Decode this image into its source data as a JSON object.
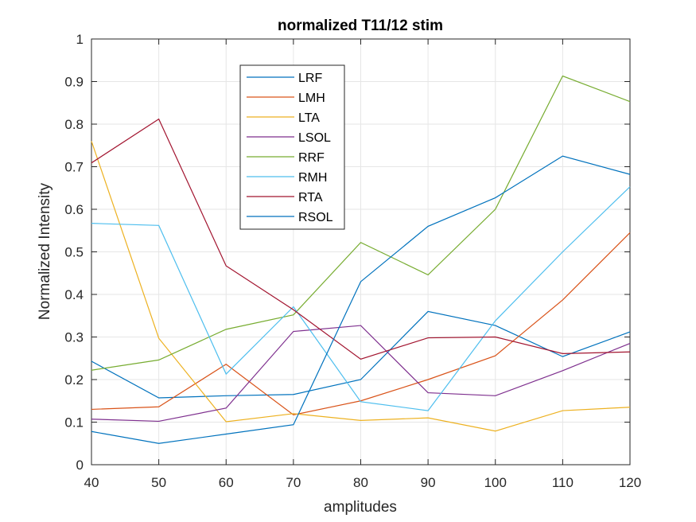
{
  "chart_data": {
    "type": "line",
    "title": "normalized T11/12 stim",
    "xlabel": "amplitudes",
    "ylabel": "Normalized Intensity",
    "xlim": [
      40,
      120
    ],
    "ylim": [
      0,
      1
    ],
    "xticks": [
      "40",
      "50",
      "60",
      "70",
      "80",
      "90",
      "100",
      "110",
      "120"
    ],
    "yticks": [
      "0",
      "0.1",
      "0.2",
      "0.3",
      "0.4",
      "0.5",
      "0.6",
      "0.7",
      "0.8",
      "0.9",
      "1"
    ],
    "grid": true,
    "legend_position": "top-center-left",
    "x": [
      40,
      50,
      60,
      70,
      80,
      90,
      100,
      110,
      120
    ],
    "series": [
      {
        "name": "LRF",
        "color": "#0072BD",
        "values": [
          0.243,
          0.157,
          0.162,
          0.165,
          0.2,
          0.36,
          0.327,
          0.254,
          0.312
        ]
      },
      {
        "name": "LMH",
        "color": "#D95319",
        "values": [
          0.13,
          0.136,
          0.236,
          0.117,
          0.15,
          0.2,
          0.256,
          0.387,
          0.545
        ]
      },
      {
        "name": "LTA",
        "color": "#EDB120",
        "values": [
          0.76,
          0.297,
          0.101,
          0.12,
          0.104,
          0.11,
          0.079,
          0.127,
          0.135
        ]
      },
      {
        "name": "LSOL",
        "color": "#7E2F8E",
        "values": [
          0.107,
          0.102,
          0.133,
          0.313,
          0.327,
          0.169,
          0.162,
          0.221,
          0.285
        ]
      },
      {
        "name": "RRF",
        "color": "#77AC30",
        "values": [
          0.222,
          0.246,
          0.318,
          0.352,
          0.522,
          0.446,
          0.6,
          0.913,
          0.853
        ]
      },
      {
        "name": "RMH",
        "color": "#4DBEEE",
        "values": [
          0.567,
          0.562,
          0.213,
          0.371,
          0.148,
          0.127,
          0.338,
          0.5,
          0.653
        ]
      },
      {
        "name": "RTA",
        "color": "#A2142F",
        "values": [
          0.709,
          0.812,
          0.467,
          0.364,
          0.248,
          0.298,
          0.3,
          0.261,
          0.265
        ]
      },
      {
        "name": "RSOL",
        "color": "#0072BD",
        "values": [
          0.078,
          0.05,
          0.072,
          0.094,
          0.43,
          0.56,
          0.627,
          0.725,
          0.682
        ]
      }
    ]
  }
}
